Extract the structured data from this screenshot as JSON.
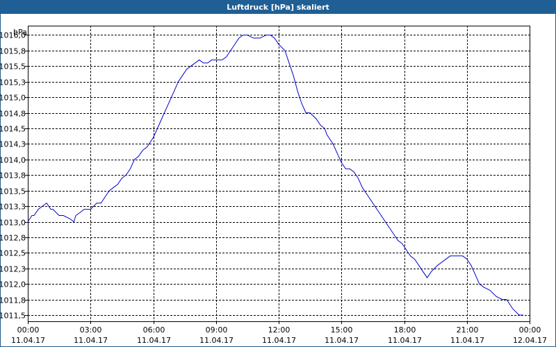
{
  "window": {
    "title": "Luftdruck [hPa] skaliert"
  },
  "colors": {
    "titlebar": "#1f5f95",
    "series": "#0000cc",
    "grid": "#000000"
  },
  "chart_data": {
    "type": "line",
    "title": "Luftdruck [hPa] skaliert",
    "ylabel": "hPa",
    "xlabel": "",
    "grid": true,
    "ylim": [
      1011.4,
      1016.15
    ],
    "xlim": [
      0,
      24
    ],
    "y_ticks": [
      "1016,0",
      "1015,8",
      "1015,5",
      "1015,3",
      "1015,0",
      "1014,8",
      "1014,5",
      "1014,3",
      "1014,0",
      "1013,8",
      "1013,5",
      "1013,3",
      "1013,0",
      "1012,8",
      "1012,5",
      "1012,3",
      "1012,0",
      "1011,8",
      "1011,5"
    ],
    "y_tick_values": [
      1016.0,
      1015.75,
      1015.5,
      1015.25,
      1015.0,
      1014.75,
      1014.5,
      1014.25,
      1014.0,
      1013.75,
      1013.5,
      1013.25,
      1013.0,
      1012.75,
      1012.5,
      1012.25,
      1012.0,
      1011.75,
      1011.5
    ],
    "x_ticks": [
      {
        "time": "00:00",
        "date": "11.04.17",
        "value": 0
      },
      {
        "time": "03:00",
        "date": "11.04.17",
        "value": 3
      },
      {
        "time": "06:00",
        "date": "11.04.17",
        "value": 6
      },
      {
        "time": "09:00",
        "date": "11.04.17",
        "value": 9
      },
      {
        "time": "12:00",
        "date": "11.04.17",
        "value": 12
      },
      {
        "time": "15:00",
        "date": "11.04.17",
        "value": 15
      },
      {
        "time": "18:00",
        "date": "11.04.17",
        "value": 18
      },
      {
        "time": "21:00",
        "date": "11.04.17",
        "value": 21
      },
      {
        "time": "00:00",
        "date": "12.04.17",
        "value": 24
      }
    ],
    "series": [
      {
        "x": [
          0,
          0.2,
          0.3,
          0.5,
          0.7,
          0.9,
          1.1,
          1.2,
          1.5,
          1.7,
          2.0,
          2.2,
          2.3,
          2.5,
          2.7,
          3.0,
          3.3,
          3.5,
          3.7,
          3.9,
          4.1,
          4.3,
          4.5,
          4.7,
          4.9,
          5.1,
          5.3,
          5.5,
          5.7,
          5.8,
          6.0,
          6.2,
          6.4,
          6.6,
          6.8,
          7.0,
          7.2,
          7.4,
          7.6,
          7.8,
          8.0,
          8.2,
          8.4,
          8.6,
          8.8,
          9.0,
          9.3,
          9.5,
          9.7,
          9.9,
          10.1,
          10.3,
          10.5,
          10.8,
          11.1,
          11.4,
          11.6,
          11.8,
          12.0,
          12.3,
          12.5,
          12.7,
          12.9,
          13.1,
          13.3,
          13.5,
          13.8,
          14.0,
          14.2,
          14.3,
          14.6,
          14.8,
          15.0,
          15.2,
          15.4,
          15.6,
          15.8,
          16.0,
          16.3,
          16.6,
          16.9,
          17.2,
          17.5,
          17.7,
          17.9,
          18.1,
          18.3,
          18.5,
          18.7,
          18.9,
          19.1,
          19.3,
          19.6,
          19.8,
          20.0,
          20.2,
          20.4,
          20.6,
          20.8,
          21.0,
          21.2,
          21.4,
          21.6,
          21.8,
          22.1,
          22.4,
          22.7,
          22.9,
          23.2,
          23.5,
          23.7
        ],
        "y": [
          1013.0,
          1013.1,
          1013.1,
          1013.2,
          1013.25,
          1013.3,
          1013.2,
          1013.2,
          1013.1,
          1013.1,
          1013.05,
          1013.0,
          1013.1,
          1013.15,
          1013.2,
          1013.2,
          1013.3,
          1013.3,
          1013.4,
          1013.5,
          1013.55,
          1013.6,
          1013.7,
          1013.75,
          1013.85,
          1014.0,
          1014.05,
          1014.15,
          1014.2,
          1014.25,
          1014.35,
          1014.5,
          1014.65,
          1014.8,
          1014.95,
          1015.1,
          1015.25,
          1015.35,
          1015.45,
          1015.5,
          1015.55,
          1015.6,
          1015.55,
          1015.55,
          1015.6,
          1015.6,
          1015.6,
          1015.65,
          1015.75,
          1015.85,
          1015.95,
          1016.0,
          1016.0,
          1015.95,
          1015.95,
          1016.0,
          1016.0,
          1015.95,
          1015.85,
          1015.75,
          1015.55,
          1015.35,
          1015.1,
          1014.9,
          1014.75,
          1014.75,
          1014.65,
          1014.55,
          1014.5,
          1014.4,
          1014.25,
          1014.1,
          1013.95,
          1013.85,
          1013.85,
          1013.8,
          1013.7,
          1013.55,
          1013.4,
          1013.25,
          1013.1,
          1012.95,
          1012.8,
          1012.7,
          1012.65,
          1012.55,
          1012.45,
          1012.4,
          1012.3,
          1012.2,
          1012.1,
          1012.2,
          1012.3,
          1012.35,
          1012.4,
          1012.45,
          1012.45,
          1012.45,
          1012.45,
          1012.4,
          1012.3,
          1012.15,
          1012.0,
          1011.95,
          1011.9,
          1011.8,
          1011.75,
          1011.75,
          1011.6,
          1011.5,
          1011.5
        ]
      }
    ]
  }
}
